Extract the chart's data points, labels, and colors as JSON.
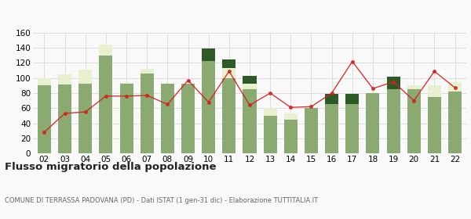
{
  "years": [
    "02",
    "03",
    "04",
    "05",
    "06",
    "07",
    "08",
    "09",
    "10",
    "11",
    "12",
    "13",
    "14",
    "15",
    "16",
    "17",
    "18",
    "19",
    "20",
    "21",
    "22"
  ],
  "iscritti_altri_comuni": [
    90,
    91,
    92,
    130,
    92,
    106,
    92,
    92,
    123,
    100,
    85,
    50,
    45,
    60,
    65,
    65,
    80,
    85,
    85,
    75,
    82
  ],
  "iscritti_estero": [
    10,
    14,
    19,
    14,
    1,
    6,
    0,
    0,
    0,
    13,
    7,
    10,
    8,
    0,
    0,
    0,
    0,
    0,
    5,
    15,
    13
  ],
  "iscritti_altri": [
    0,
    0,
    0,
    0,
    0,
    0,
    0,
    0,
    16,
    12,
    11,
    0,
    0,
    0,
    14,
    14,
    0,
    17,
    0,
    0,
    0
  ],
  "cancellati": [
    28,
    53,
    55,
    76,
    76,
    77,
    65,
    97,
    68,
    109,
    64,
    80,
    61,
    62,
    80,
    122,
    86,
    95,
    70,
    109,
    87
  ],
  "color_altri_comuni": "#8aaa72",
  "color_estero": "#e8f0d0",
  "color_altri": "#2d5a27",
  "color_cancellati": "#d42020",
  "title": "Flusso migratorio della popolazione",
  "subtitle": "COMUNE DI TERRASSA PADOVANA (PD) - Dati ISTAT (1 gen-31 dic) - Elaborazione TUTTITALIA.IT",
  "ylim": [
    0,
    160
  ],
  "yticks": [
    0,
    20,
    40,
    60,
    80,
    100,
    120,
    140,
    160
  ],
  "bg_color": "#f9f9f9",
  "grid_color": "#d8d8d8"
}
